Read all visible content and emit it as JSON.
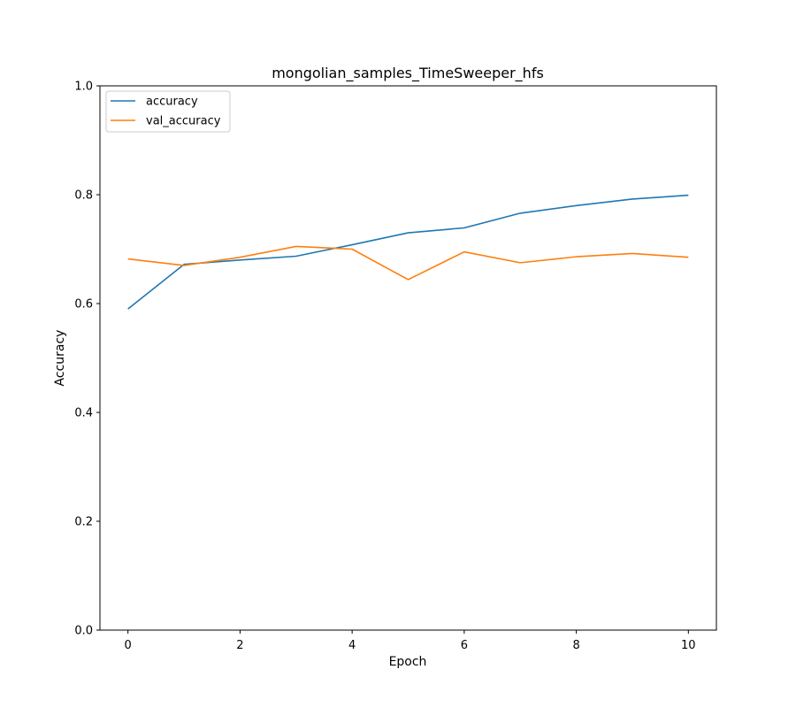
{
  "chart_data": {
    "type": "line",
    "title": "mongolian_samples_TimeSweeper_hfs",
    "xlabel": "Epoch",
    "ylabel": "Accuracy",
    "xlim": [
      -0.5,
      10.5
    ],
    "ylim": [
      0.0,
      1.0
    ],
    "xticks": [
      0,
      2,
      4,
      6,
      8,
      10
    ],
    "yticks": [
      0.0,
      0.2,
      0.4,
      0.6,
      0.8,
      1.0
    ],
    "ytick_labels": [
      "0.0",
      "0.2",
      "0.4",
      "0.6",
      "0.8",
      "1.0"
    ],
    "x": [
      0,
      1,
      2,
      3,
      4,
      5,
      6,
      7,
      8,
      9,
      10
    ],
    "legend_position": "upper-left",
    "grid": false,
    "series": [
      {
        "name": "accuracy",
        "color": "#1f77b4",
        "values": [
          0.59,
          0.672,
          0.68,
          0.687,
          0.708,
          0.73,
          0.739,
          0.766,
          0.78,
          0.792,
          0.799
        ]
      },
      {
        "name": "val_accuracy",
        "color": "#ff7f0e",
        "values": [
          0.682,
          0.67,
          0.685,
          0.705,
          0.7,
          0.644,
          0.695,
          0.675,
          0.686,
          0.692,
          0.685
        ]
      }
    ]
  }
}
